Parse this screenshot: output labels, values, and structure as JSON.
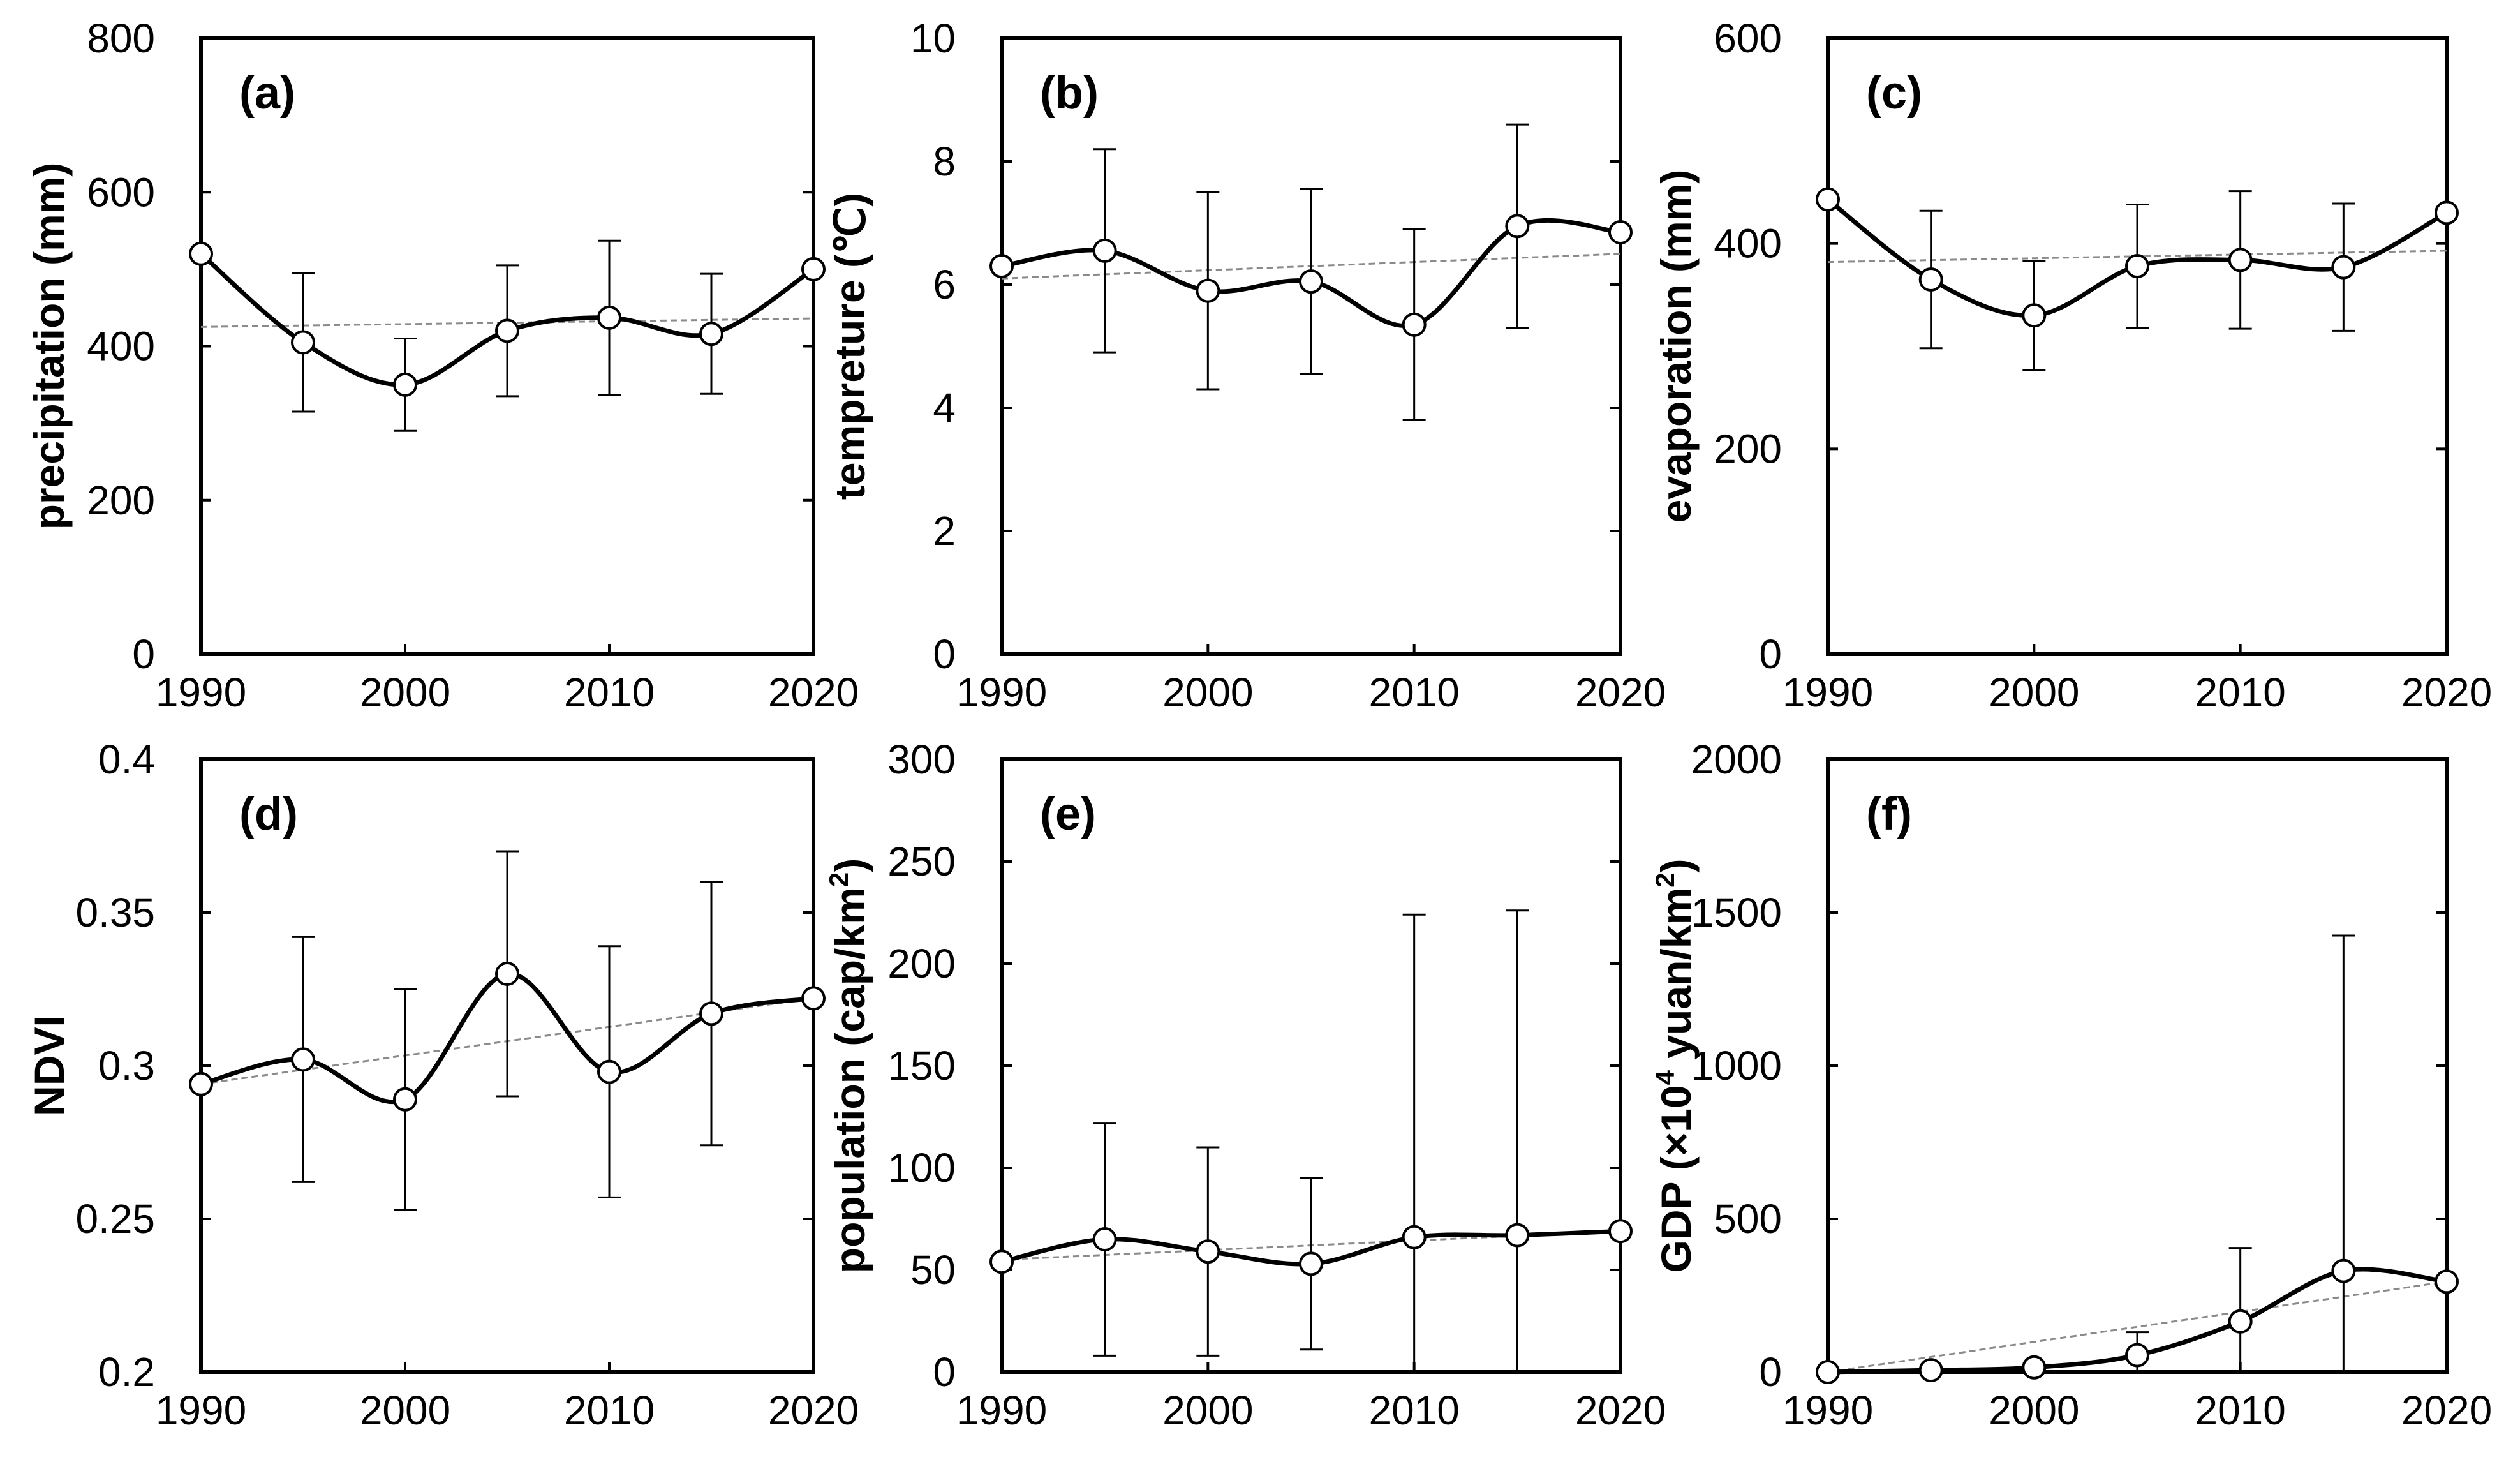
{
  "chart_data": [
    {
      "type": "line",
      "panel_label": "(a)",
      "ylabel": "precipitation (mm)",
      "x": [
        1990,
        1995,
        2000,
        2005,
        2010,
        2015,
        2020
      ],
      "values": [
        520,
        405,
        350,
        420,
        437,
        416,
        500
      ],
      "errors": [
        null,
        90,
        60,
        85,
        100,
        78,
        null
      ],
      "trend": [
        425,
        436
      ],
      "xlim": [
        1990,
        2020
      ],
      "ylim": [
        0,
        800
      ],
      "xticks": [
        "1990",
        "2000",
        "2010",
        "2020"
      ],
      "yticks": [
        "0",
        "200",
        "400",
        "600",
        "800"
      ]
    },
    {
      "type": "line",
      "panel_label": "(b)",
      "ylabel": "tempreture (℃)",
      "x": [
        1990,
        1995,
        2000,
        2005,
        2010,
        2015,
        2020
      ],
      "values": [
        6.3,
        6.55,
        5.9,
        6.05,
        5.35,
        6.95,
        6.85
      ],
      "errors": [
        null,
        1.65,
        1.6,
        1.5,
        1.55,
        1.65,
        null
      ],
      "trend": [
        6.1,
        6.5
      ],
      "xlim": [
        1990,
        2020
      ],
      "ylim": [
        0,
        10
      ],
      "xticks": [
        "1990",
        "2000",
        "2010",
        "2020"
      ],
      "yticks": [
        "0",
        "2",
        "4",
        "6",
        "8",
        "10"
      ]
    },
    {
      "type": "line",
      "panel_label": "(c)",
      "ylabel": "evaporation (mm)",
      "x": [
        1990,
        1995,
        2000,
        2005,
        2010,
        2015,
        2020
      ],
      "values": [
        443,
        365,
        330,
        378,
        384,
        377,
        430
      ],
      "errors": [
        null,
        67,
        53,
        60,
        67,
        62,
        null
      ],
      "trend": [
        382,
        393
      ],
      "xlim": [
        1990,
        2020
      ],
      "ylim": [
        0,
        600
      ],
      "xticks": [
        "1990",
        "2000",
        "2010",
        "2020"
      ],
      "yticks": [
        "0",
        "200",
        "400",
        "600"
      ]
    },
    {
      "type": "line",
      "panel_label": "(d)",
      "ylabel": "NDVI",
      "x": [
        1990,
        1995,
        2000,
        2005,
        2010,
        2015,
        2020
      ],
      "values": [
        0.294,
        0.302,
        0.289,
        0.33,
        0.298,
        0.317,
        0.322
      ],
      "errors": [
        null,
        0.04,
        0.036,
        0.04,
        0.041,
        0.043,
        null
      ],
      "trend": [
        0.294,
        0.322
      ],
      "xlim": [
        1990,
        2020
      ],
      "ylim": [
        0.2,
        0.4
      ],
      "xticks": [
        "1990",
        "2000",
        "2010",
        "2020"
      ],
      "yticks": [
        "0.2",
        "0.25",
        "0.3",
        "0.35",
        "0.4"
      ]
    },
    {
      "type": "line",
      "panel_label": "(e)",
      "ylabel_main": "population (cap/km",
      "ylabel_sup": "2",
      "ylabel_end": ")",
      "x": [
        1990,
        1995,
        2000,
        2005,
        2010,
        2015,
        2020
      ],
      "values": [
        54,
        65,
        59,
        53,
        66,
        67,
        69
      ],
      "errors": [
        null,
        57,
        51,
        42,
        158,
        159,
        null
      ],
      "trend": [
        55,
        69
      ],
      "xlim": [
        1990,
        2020
      ],
      "ylim": [
        0,
        300
      ],
      "xticks": [
        "1990",
        "2000",
        "2010",
        "2020"
      ],
      "yticks": [
        "0",
        "50",
        "100",
        "150",
        "200",
        "250",
        "300"
      ]
    },
    {
      "type": "line",
      "panel_label": "(f)",
      "ylabel_main": "GDP (×10",
      "ylabel_sup": "4",
      "ylabel_mid": " yuan/km",
      "ylabel_sup2": "2",
      "ylabel_end": ")",
      "x": [
        1990,
        1995,
        2000,
        2005,
        2010,
        2015,
        2020
      ],
      "values": [
        0,
        6,
        15,
        55,
        165,
        330,
        295
      ],
      "errors": [
        null,
        null,
        null,
        75,
        240,
        1095,
        null
      ],
      "trend": [
        0,
        295
      ],
      "xlim": [
        1990,
        2020
      ],
      "ylim": [
        0,
        2000
      ],
      "xticks": [
        "1990",
        "2000",
        "2010",
        "2020"
      ],
      "yticks": [
        "0",
        "500",
        "1000",
        "1500",
        "2000"
      ]
    }
  ]
}
